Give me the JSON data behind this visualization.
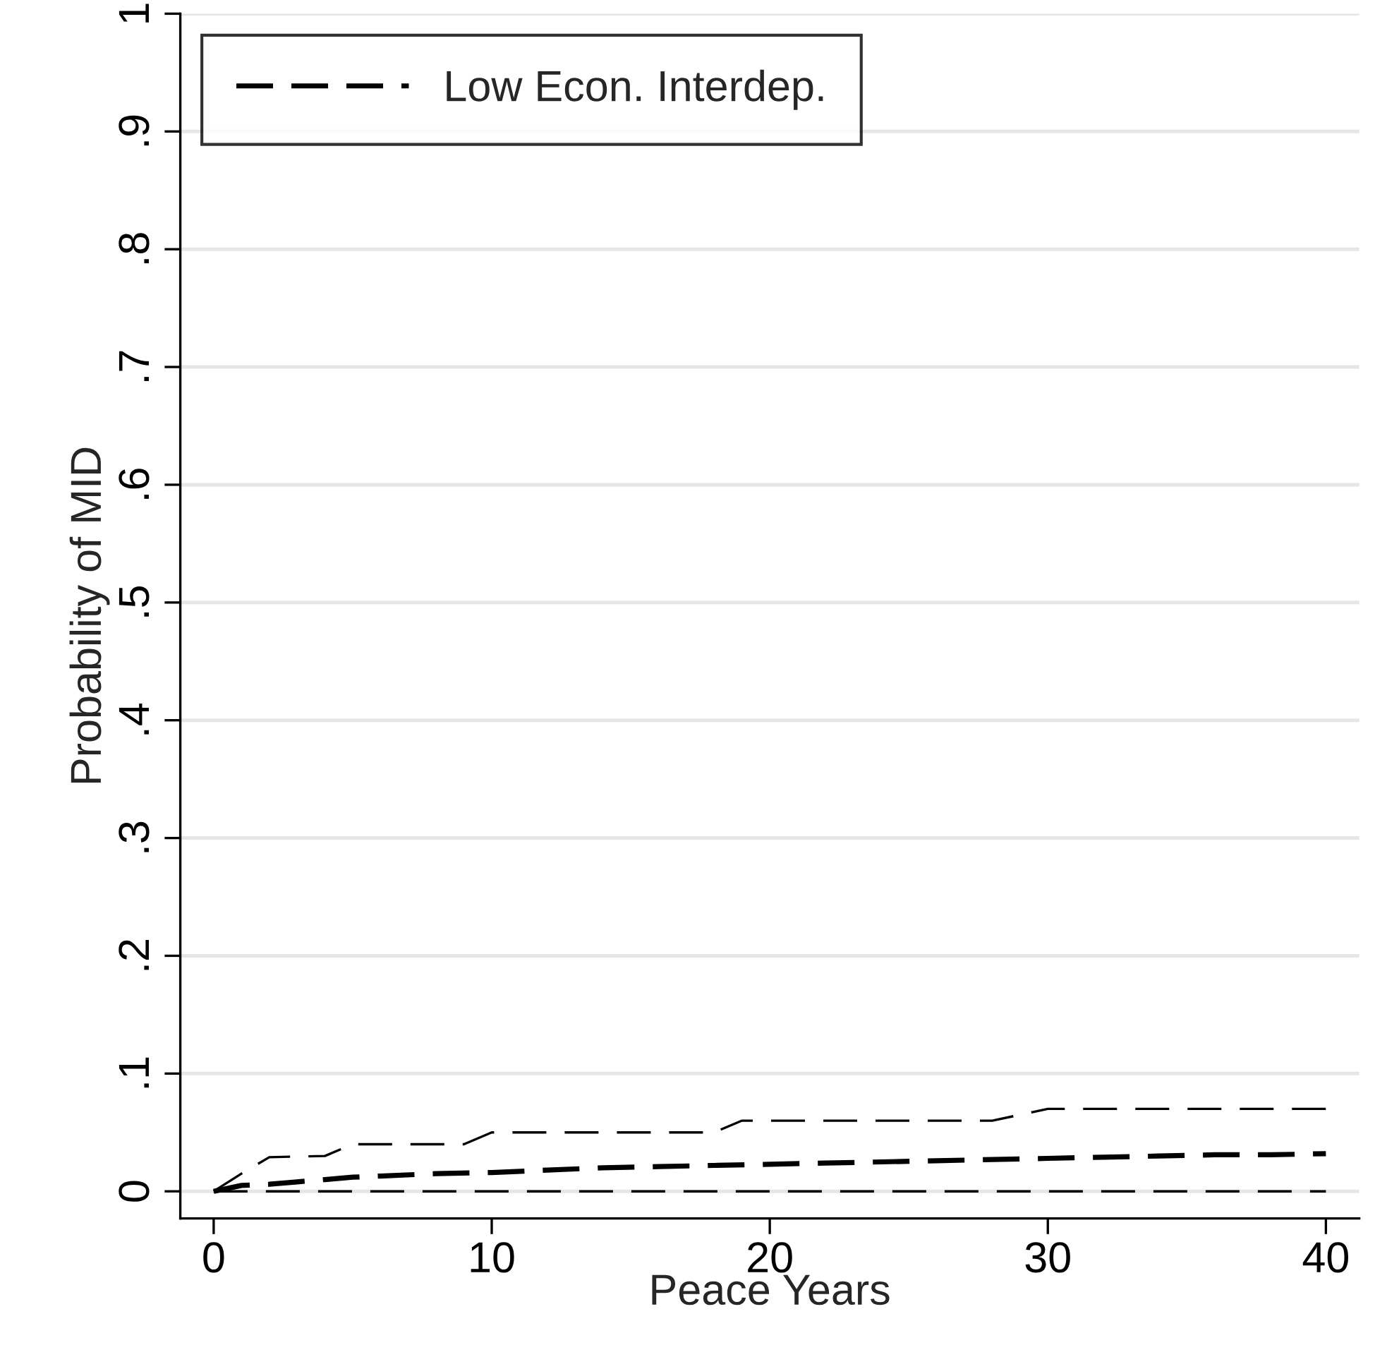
{
  "chart_data": {
    "type": "line",
    "xlabel": "Peace Years",
    "ylabel": "Probability of MID",
    "xlim": [
      -1.2,
      41.2
    ],
    "xticks": [
      0,
      10,
      20,
      30,
      40
    ],
    "ylim": [
      -0.023,
      1.0
    ],
    "yticks": [
      0,
      {
        "value": 0.1,
        "label": ".1"
      },
      {
        "value": 0.2,
        "label": ".2"
      },
      {
        "value": 0.3,
        "label": ".3"
      },
      {
        "value": 0.4,
        "label": ".4"
      },
      {
        "value": 0.5,
        "label": ".5"
      },
      {
        "value": 0.6,
        "label": ".6"
      },
      {
        "value": 0.7,
        "label": ".7"
      },
      {
        "value": 0.8,
        "label": ".8"
      },
      {
        "value": 0.9,
        "label": ".9"
      },
      1
    ],
    "grid": "y",
    "legend": "top left",
    "line_style": "dashed",
    "series": [
      {
        "name": "Low Econ. Interdep.",
        "color": "#000000",
        "x": [
          0,
          1,
          2,
          3,
          4,
          5,
          6,
          8,
          10,
          12,
          14,
          16,
          18,
          20,
          22,
          24,
          26,
          28,
          30,
          32,
          34,
          36,
          38,
          40
        ],
        "values": [
          0,
          0.005,
          0.006,
          0.008,
          0.01,
          0.012,
          0.013,
          0.015,
          0.016,
          0.018,
          0.02,
          0.021,
          0.022,
          0.023,
          0.024,
          0.025,
          0.026,
          0.027,
          0.028,
          0.029,
          0.03,
          0.031,
          0.031,
          0.032
        ]
      },
      {
        "color": "#000000",
        "x": [
          0,
          1,
          2,
          4,
          5,
          9,
          10,
          18,
          19,
          28,
          30,
          40
        ],
        "values": [
          0,
          0.015,
          0.029,
          0.03,
          0.04,
          0.04,
          0.05,
          0.05,
          0.06,
          0.06,
          0.07,
          0.07
        ]
      },
      {
        "color": "#000000",
        "x": [
          0,
          40
        ],
        "values": [
          0,
          0
        ]
      }
    ]
  }
}
